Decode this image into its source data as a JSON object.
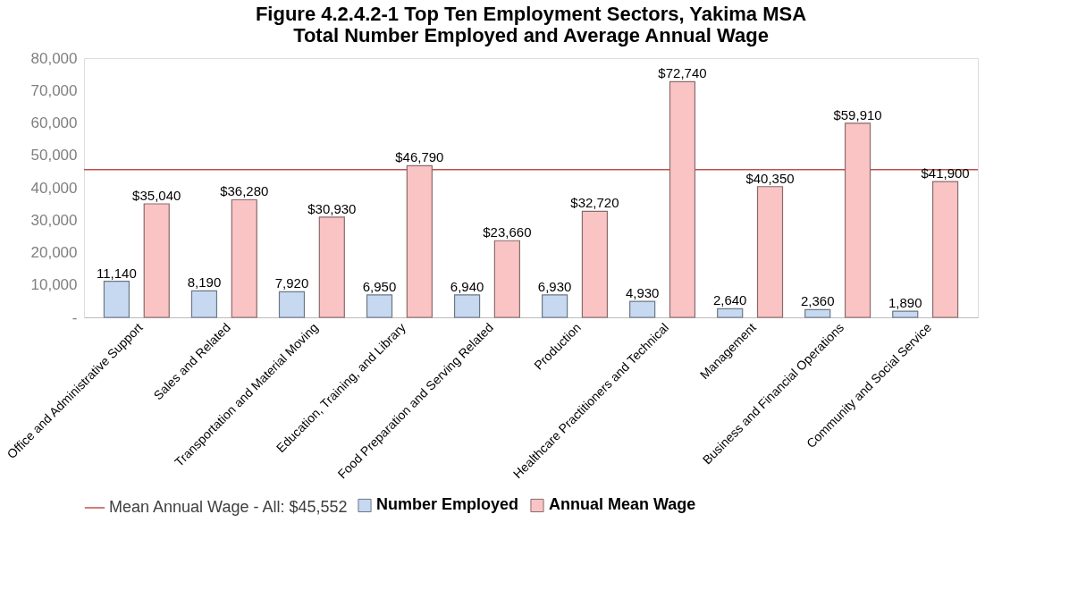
{
  "chart_data": {
    "type": "bar",
    "title": [
      "Figure 4.2.4.2-1 Top Ten Employment Sectors, Yakima MSA",
      "Total Number Employed and Average Annual Wage"
    ],
    "categories": [
      "Office and Administrative Support",
      "Sales and Related",
      "Transportation and Material Moving",
      "Education, Training, and Library",
      "Food Preparation and Serving Related",
      "Production",
      "Healthcare Practitioners and Technical",
      "Management",
      "Business and Financial Operations",
      "Community and Social Service"
    ],
    "series": [
      {
        "name": "Number Employed",
        "color": "#c6d9f1",
        "values": [
          11140,
          8190,
          7920,
          6950,
          6940,
          6930,
          4930,
          2640,
          2360,
          1890
        ],
        "value_labels": [
          "11,140",
          "8,190",
          "7,920",
          "6,950",
          "6,940",
          "6,930",
          "4,930",
          "2,640",
          "2,360",
          "1,890"
        ]
      },
      {
        "name": "Annual Mean Wage",
        "color": "#fac4c4",
        "values": [
          35040,
          36280,
          30930,
          46790,
          23660,
          32720,
          72740,
          40350,
          59910,
          41900
        ],
        "value_labels": [
          "$35,040",
          "$36,280",
          "$30,930",
          "$46,790",
          "$23,660",
          "$32,720",
          "$72,740",
          "$40,350",
          "$59,910",
          "$41,900"
        ]
      }
    ],
    "ylim": [
      0,
      80000
    ],
    "yticks": [
      {
        "value": 0,
        "label": "-"
      },
      {
        "value": 10000,
        "label": "10,000"
      },
      {
        "value": 20000,
        "label": "20,000"
      },
      {
        "value": 30000,
        "label": "30,000"
      },
      {
        "value": 40000,
        "label": "40,000"
      },
      {
        "value": 50000,
        "label": "50,000"
      },
      {
        "value": 60000,
        "label": "60,000"
      },
      {
        "value": 70000,
        "label": "70,000"
      },
      {
        "value": 80000,
        "label": "80,000"
      }
    ],
    "ref_lines": [
      {
        "axis": "y",
        "value": 45552,
        "label": "Mean Annual Wage - All: $45,552",
        "color": "#c0504d"
      }
    ],
    "grid": false,
    "legend": "bottom"
  }
}
